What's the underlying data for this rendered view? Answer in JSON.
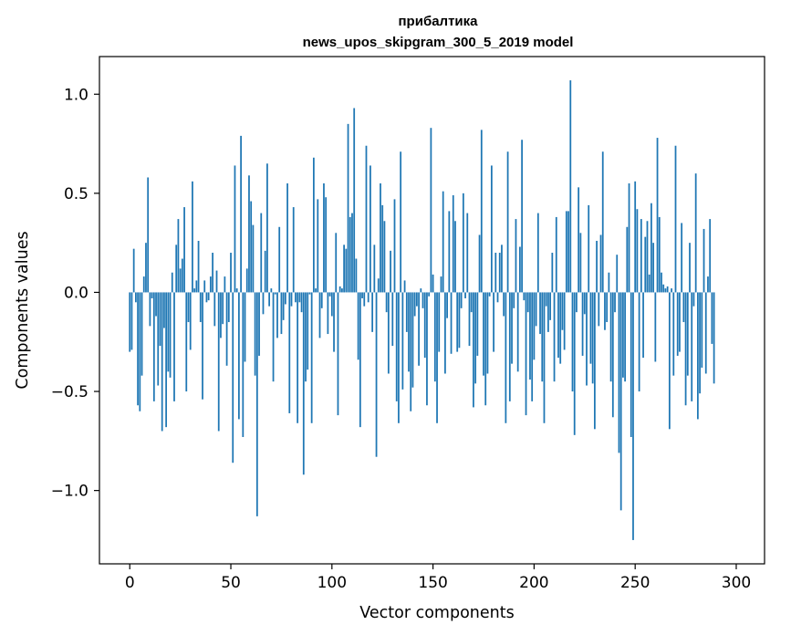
{
  "chart_data": {
    "type": "bar",
    "title_line1": "прибалтика",
    "title_line2": "news_upos_skipgram_300_5_2019 model",
    "xlabel": "Vector components",
    "ylabel": "Components values",
    "xlim": [
      -15,
      314
    ],
    "ylim": [
      -1.37,
      1.19
    ],
    "xticks": [
      0,
      50,
      100,
      150,
      200,
      250,
      300
    ],
    "xtick_labels": [
      "0",
      "50",
      "100",
      "150",
      "200",
      "250",
      "300"
    ],
    "yticks": [
      -1.0,
      -0.5,
      0.0,
      0.5,
      1.0
    ],
    "ytick_labels": [
      "−1.0",
      "−0.5",
      "0.0",
      "0.5",
      "1.0"
    ],
    "grid": false,
    "bar_color": "#1f77b4",
    "values": [
      -0.3,
      -0.29,
      0.22,
      -0.05,
      -0.57,
      -0.6,
      -0.42,
      0.08,
      0.25,
      0.58,
      -0.17,
      -0.03,
      -0.55,
      -0.12,
      -0.47,
      -0.27,
      -0.7,
      -0.18,
      -0.68,
      -0.4,
      -0.43,
      0.1,
      -0.55,
      0.24,
      0.37,
      0.12,
      0.17,
      0.43,
      -0.5,
      -0.15,
      -0.29,
      0.56,
      0.02,
      0.06,
      0.26,
      -0.15,
      -0.54,
      0.06,
      -0.05,
      -0.04,
      0.08,
      0.2,
      -0.17,
      0.11,
      -0.7,
      -0.23,
      -0.16,
      0.08,
      -0.37,
      -0.15,
      0.2,
      -0.86,
      0.64,
      0.02,
      -0.64,
      0.79,
      -0.73,
      -0.35,
      0.12,
      0.59,
      0.46,
      0.34,
      -0.42,
      -1.13,
      -0.32,
      0.4,
      -0.11,
      0.21,
      0.65,
      -0.07,
      0.02,
      -0.45,
      -0.01,
      -0.23,
      0.33,
      -0.21,
      -0.14,
      -0.06,
      0.55,
      -0.61,
      -0.07,
      0.43,
      -0.05,
      -0.66,
      -0.05,
      -0.1,
      -0.92,
      -0.45,
      -0.39,
      -0.01,
      -0.66,
      0.68,
      0.02,
      0.47,
      -0.23,
      -0.08,
      0.55,
      0.48,
      -0.21,
      -0.02,
      -0.12,
      -0.3,
      0.3,
      -0.62,
      0.03,
      0.02,
      0.24,
      0.22,
      0.85,
      0.38,
      0.4,
      0.93,
      0.17,
      -0.34,
      -0.68,
      -0.03,
      -0.07,
      0.74,
      -0.05,
      0.64,
      -0.2,
      0.24,
      -0.83,
      0.07,
      0.55,
      0.44,
      0.36,
      -0.1,
      -0.41,
      0.21,
      -0.27,
      0.47,
      -0.55,
      -0.66,
      0.71,
      -0.49,
      0.06,
      -0.2,
      -0.4,
      -0.6,
      -0.48,
      -0.12,
      -0.07,
      -0.37,
      0.02,
      -0.08,
      -0.33,
      -0.57,
      -0.02,
      0.83,
      0.09,
      -0.45,
      -0.66,
      -0.3,
      0.08,
      0.51,
      -0.41,
      -0.13,
      0.41,
      -0.31,
      0.49,
      0.36,
      -0.3,
      -0.28,
      -0.08,
      0.5,
      -0.03,
      0.4,
      -0.27,
      -0.1,
      -0.58,
      -0.46,
      -0.32,
      0.29,
      0.82,
      -0.42,
      -0.57,
      -0.41,
      -0.02,
      0.64,
      -0.3,
      0.2,
      -0.05,
      0.2,
      0.24,
      -0.12,
      -0.66,
      0.71,
      -0.55,
      -0.36,
      -0.08,
      0.37,
      -0.4,
      0.23,
      0.77,
      -0.04,
      -0.62,
      -0.1,
      -0.44,
      -0.55,
      -0.34,
      -0.17,
      0.4,
      -0.21,
      -0.45,
      -0.66,
      -0.07,
      -0.2,
      -0.14,
      0.2,
      -0.45,
      0.38,
      -0.33,
      -0.36,
      -0.19,
      -0.29,
      0.41,
      0.41,
      1.07,
      -0.5,
      -0.72,
      -0.1,
      0.53,
      0.3,
      -0.32,
      -0.11,
      -0.47,
      0.44,
      -0.36,
      -0.46,
      -0.69,
      0.26,
      -0.17,
      0.29,
      0.71,
      -0.19,
      -0.15,
      0.1,
      -0.45,
      -0.63,
      -0.1,
      0.19,
      -0.81,
      -1.1,
      -0.43,
      -0.45,
      0.33,
      0.55,
      -0.73,
      -1.25,
      0.56,
      0.42,
      -0.5,
      0.37,
      -0.33,
      0.28,
      0.36,
      0.09,
      0.45,
      0.25,
      -0.35,
      0.78,
      0.38,
      0.1,
      0.04,
      0.02,
      0.03,
      -0.69,
      0.02,
      -0.42,
      0.74,
      -0.32,
      -0.3,
      0.35,
      -0.15,
      -0.57,
      -0.42,
      0.25,
      -0.55,
      -0.07,
      0.6,
      -0.64,
      -0.51,
      -0.38,
      0.32,
      -0.41,
      0.08,
      0.37,
      -0.26,
      -0.46
    ]
  }
}
